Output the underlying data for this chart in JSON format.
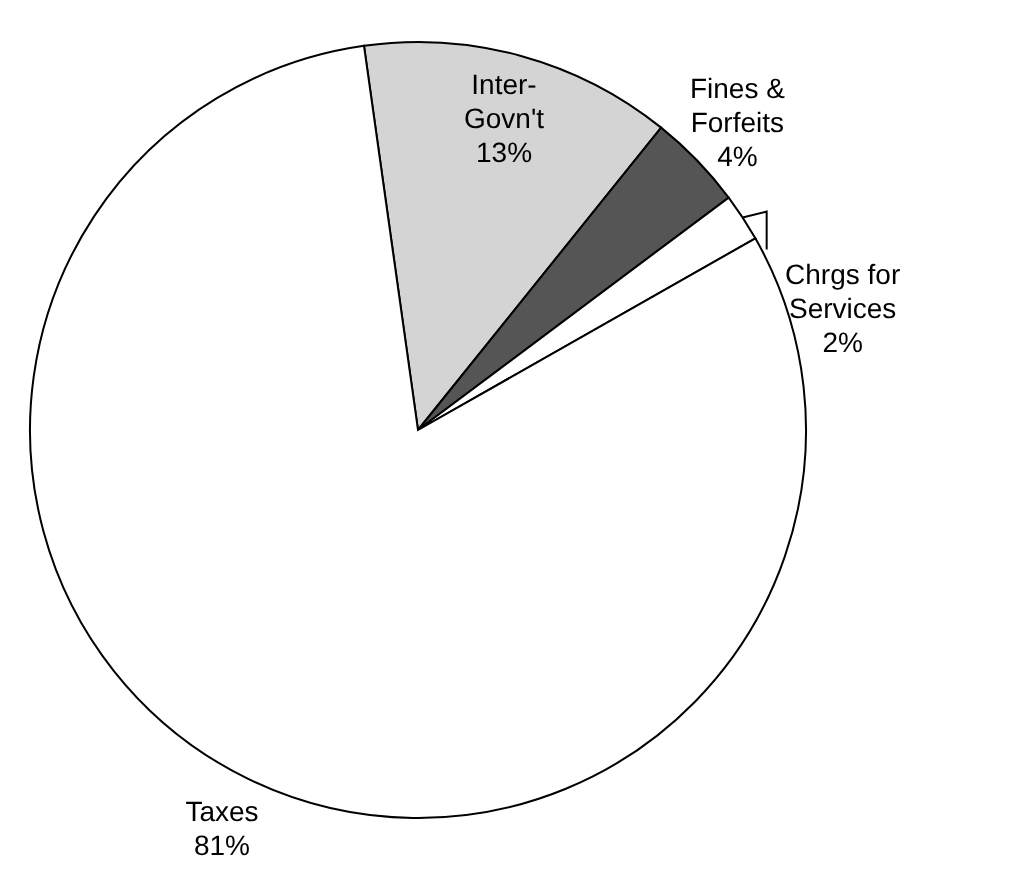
{
  "chart_data": {
    "type": "pie",
    "categories": [
      "Inter-Govn't",
      "Fines & Forfeits",
      "Chrgs for Services",
      "Taxes"
    ],
    "values": [
      13,
      4,
      2,
      81
    ],
    "value_labels": [
      "13%",
      "4%",
      "2%",
      "81%"
    ],
    "colors": [
      "#d4d4d4",
      "#555555",
      "#ffffff",
      "#ffffff"
    ]
  }
}
